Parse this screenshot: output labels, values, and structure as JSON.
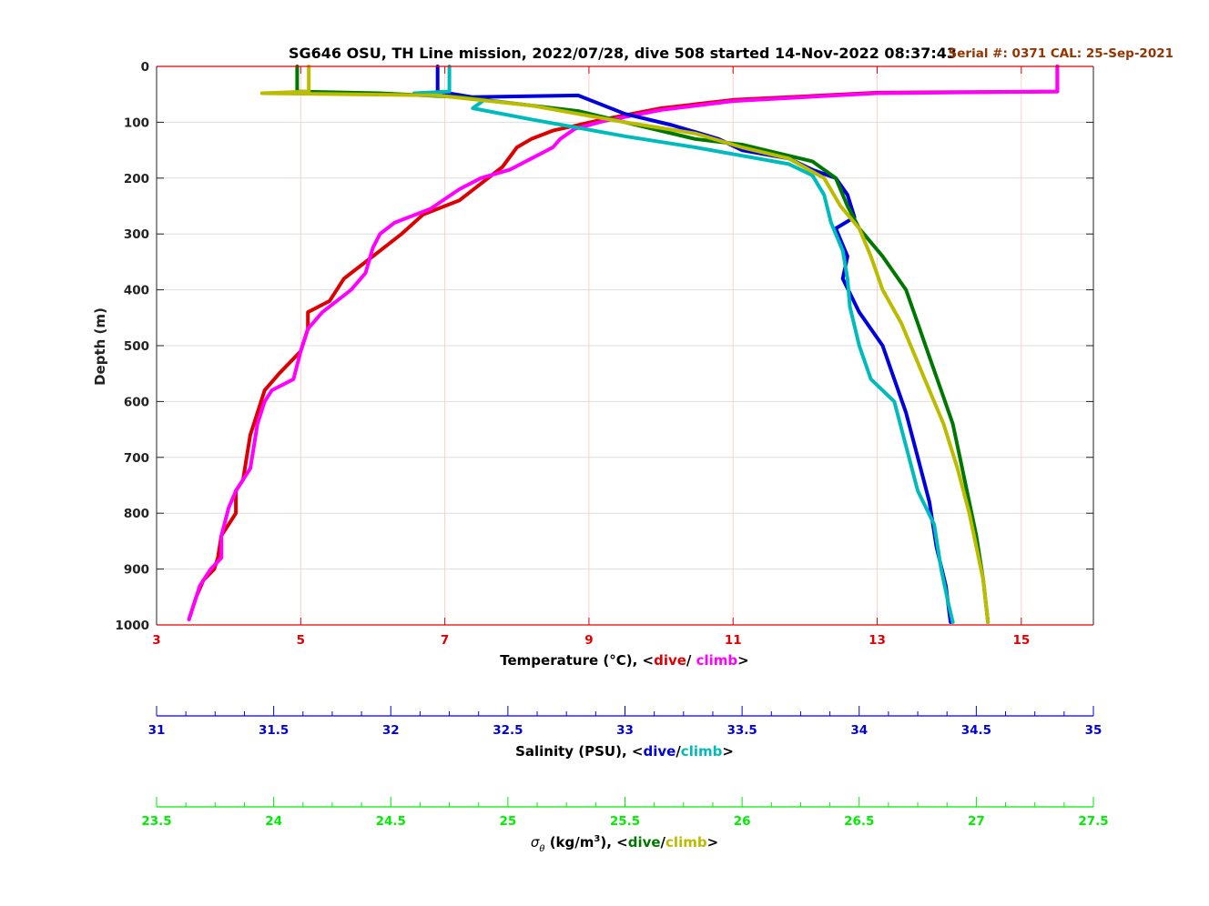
{
  "title": "SG646 OSU, TH Line mission, 2022/07/28, dive 508 started 14-Nov-2022 08:37:43",
  "serial_text": "Serial #: 0371  CAL: 25-Sep-2021",
  "colors": {
    "temp_axis": "#e00000",
    "sal_axis": "#0000dd",
    "sigma_axis": "#00ee00",
    "serial": "#993300",
    "grid": "#dddddd",
    "grid_red": "#ffcccc",
    "temp_dive": "#dd0000",
    "temp_climb": "#ff00ff",
    "sal_dive": "#0000dd",
    "sal_climb": "#00bbbb",
    "sigma_dive": "#007700",
    "sigma_climb": "#bbbb00"
  },
  "chart_data": {
    "type": "line",
    "ylabel": "Depth (m)",
    "ylim": [
      0,
      1000
    ],
    "yticks": [
      "0",
      "100",
      "200",
      "300",
      "400",
      "500",
      "600",
      "700",
      "800",
      "900",
      "1000"
    ],
    "y_reversed": true,
    "grid": true,
    "axes": [
      {
        "id": "temperature",
        "label_main": "Temperature (°C), <",
        "label_dive": "dive",
        "label_sep": "/ ",
        "label_climb": "climb",
        "label_end": ">",
        "lim": [
          3,
          16
        ],
        "ticks": [
          "3",
          "5",
          "7",
          "9",
          "11",
          "13",
          "15"
        ]
      },
      {
        "id": "salinity",
        "label_main": "Salinity (PSU), <",
        "label_dive": "dive",
        "label_sep": "/",
        "label_climb": "climb",
        "label_end": ">",
        "lim": [
          31,
          35
        ],
        "ticks": [
          "31",
          "31.5",
          "32",
          "32.5",
          "33",
          "33.5",
          "34",
          "34.5",
          "35"
        ]
      },
      {
        "id": "sigma",
        "label_sigma": "σ",
        "label_theta": "θ",
        "label_main": " (kg/m",
        "label_sup": "3",
        "label_rest": "), <",
        "label_dive": "dive",
        "label_sep": "/",
        "label_climb": "climb",
        "label_end": ">",
        "lim": [
          23.5,
          27.5
        ],
        "ticks": [
          "23.5",
          "24",
          "24.5",
          "25",
          "25.5",
          "26",
          "26.5",
          "27",
          "27.5"
        ]
      }
    ],
    "series": [
      {
        "name": "temperature dive",
        "axis": "temperature",
        "style": "temp_dive",
        "points": [
          [
            15.5,
            0
          ],
          [
            15.5,
            45
          ],
          [
            13,
            47
          ],
          [
            11,
            60
          ],
          [
            10,
            75
          ],
          [
            9.2,
            95
          ],
          [
            8.5,
            115
          ],
          [
            8.2,
            130
          ],
          [
            8,
            145
          ],
          [
            7.8,
            180
          ],
          [
            7.5,
            210
          ],
          [
            7.2,
            240
          ],
          [
            6.7,
            265
          ],
          [
            6.4,
            300
          ],
          [
            6,
            340
          ],
          [
            5.6,
            380
          ],
          [
            5.4,
            420
          ],
          [
            5.1,
            440
          ],
          [
            5.1,
            470
          ],
          [
            5,
            510
          ],
          [
            4.7,
            550
          ],
          [
            4.5,
            580
          ],
          [
            4.4,
            620
          ],
          [
            4.3,
            660
          ],
          [
            4.25,
            700
          ],
          [
            4.2,
            740
          ],
          [
            4.1,
            760
          ],
          [
            4.1,
            800
          ],
          [
            3.9,
            840
          ],
          [
            3.85,
            880
          ],
          [
            3.8,
            900
          ],
          [
            3.65,
            920
          ],
          [
            3.55,
            950
          ],
          [
            3.45,
            990
          ]
        ]
      },
      {
        "name": "temperature climb",
        "axis": "temperature",
        "style": "temp_climb",
        "points": [
          [
            15.5,
            0
          ],
          [
            15.5,
            45
          ],
          [
            13,
            48
          ],
          [
            11,
            62
          ],
          [
            10,
            78
          ],
          [
            9.2,
            98
          ],
          [
            8.8,
            112
          ],
          [
            8.6,
            130
          ],
          [
            8.5,
            145
          ],
          [
            8.2,
            165
          ],
          [
            7.9,
            185
          ],
          [
            7.5,
            200
          ],
          [
            7.2,
            220
          ],
          [
            6.8,
            255
          ],
          [
            6.3,
            280
          ],
          [
            6.1,
            300
          ],
          [
            6,
            325
          ],
          [
            5.9,
            370
          ],
          [
            5.7,
            400
          ],
          [
            5.3,
            440
          ],
          [
            5.1,
            470
          ],
          [
            5,
            510
          ],
          [
            4.9,
            560
          ],
          [
            4.6,
            580
          ],
          [
            4.5,
            600
          ],
          [
            4.4,
            640
          ],
          [
            4.35,
            680
          ],
          [
            4.3,
            720
          ],
          [
            4.1,
            760
          ],
          [
            4,
            790
          ],
          [
            3.9,
            840
          ],
          [
            3.9,
            880
          ],
          [
            3.75,
            900
          ],
          [
            3.6,
            930
          ],
          [
            3.45,
            990
          ]
        ]
      },
      {
        "name": "salinity dive",
        "axis": "salinity",
        "style": "sal_dive",
        "points": [
          [
            32.2,
            0
          ],
          [
            32.2,
            45
          ],
          [
            32.35,
            55
          ],
          [
            32.8,
            52
          ],
          [
            33.0,
            85
          ],
          [
            33.2,
            105
          ],
          [
            33.4,
            130
          ],
          [
            33.5,
            150
          ],
          [
            33.7,
            165
          ],
          [
            33.8,
            185
          ],
          [
            33.9,
            200
          ],
          [
            33.95,
            230
          ],
          [
            33.98,
            270
          ],
          [
            33.9,
            290
          ],
          [
            33.95,
            340
          ],
          [
            33.93,
            380
          ],
          [
            34.0,
            440
          ],
          [
            34.1,
            500
          ],
          [
            34.15,
            560
          ],
          [
            34.2,
            620
          ],
          [
            34.25,
            700
          ],
          [
            34.3,
            780
          ],
          [
            34.33,
            860
          ],
          [
            34.37,
            930
          ],
          [
            34.39,
            995
          ]
        ]
      },
      {
        "name": "salinity climb",
        "axis": "salinity",
        "style": "sal_climb",
        "points": [
          [
            32.25,
            0
          ],
          [
            32.25,
            45
          ],
          [
            32.1,
            48
          ],
          [
            32.4,
            60
          ],
          [
            32.35,
            75
          ],
          [
            32.6,
            95
          ],
          [
            32.8,
            110
          ],
          [
            33.0,
            125
          ],
          [
            33.3,
            145
          ],
          [
            33.5,
            160
          ],
          [
            33.7,
            175
          ],
          [
            33.8,
            195
          ],
          [
            33.85,
            230
          ],
          [
            33.88,
            280
          ],
          [
            33.93,
            330
          ],
          [
            33.95,
            380
          ],
          [
            33.96,
            430
          ],
          [
            34.0,
            500
          ],
          [
            34.05,
            560
          ],
          [
            34.15,
            600
          ],
          [
            34.2,
            680
          ],
          [
            34.25,
            760
          ],
          [
            34.32,
            820
          ],
          [
            34.35,
            900
          ],
          [
            34.38,
            960
          ],
          [
            34.4,
            995
          ]
        ]
      },
      {
        "name": "sigma dive",
        "axis": "sigma",
        "style": "sigma_dive",
        "points": [
          [
            24.1,
            0
          ],
          [
            24.1,
            45
          ],
          [
            24.45,
            48
          ],
          [
            24.8,
            55
          ],
          [
            25.3,
            80
          ],
          [
            25.6,
            110
          ],
          [
            25.8,
            130
          ],
          [
            26.0,
            140
          ],
          [
            26.15,
            155
          ],
          [
            26.3,
            170
          ],
          [
            26.4,
            200
          ],
          [
            26.45,
            250
          ],
          [
            26.5,
            290
          ],
          [
            26.6,
            340
          ],
          [
            26.7,
            400
          ],
          [
            26.75,
            460
          ],
          [
            26.8,
            520
          ],
          [
            26.85,
            580
          ],
          [
            26.9,
            640
          ],
          [
            26.93,
            700
          ],
          [
            26.96,
            760
          ],
          [
            27.0,
            840
          ],
          [
            27.03,
            920
          ],
          [
            27.05,
            995
          ]
        ]
      },
      {
        "name": "sigma climb",
        "axis": "sigma",
        "style": "sigma_climb",
        "points": [
          [
            24.15,
            0
          ],
          [
            24.15,
            45
          ],
          [
            23.95,
            48
          ],
          [
            24.7,
            52
          ],
          [
            25.1,
            70
          ],
          [
            25.5,
            100
          ],
          [
            25.8,
            120
          ],
          [
            26.0,
            145
          ],
          [
            26.2,
            165
          ],
          [
            26.35,
            200
          ],
          [
            26.42,
            250
          ],
          [
            26.5,
            290
          ],
          [
            26.55,
            340
          ],
          [
            26.6,
            400
          ],
          [
            26.68,
            460
          ],
          [
            26.74,
            520
          ],
          [
            26.8,
            580
          ],
          [
            26.86,
            640
          ],
          [
            26.92,
            720
          ],
          [
            26.97,
            800
          ],
          [
            27.0,
            860
          ],
          [
            27.03,
            920
          ],
          [
            27.05,
            995
          ]
        ]
      }
    ]
  }
}
